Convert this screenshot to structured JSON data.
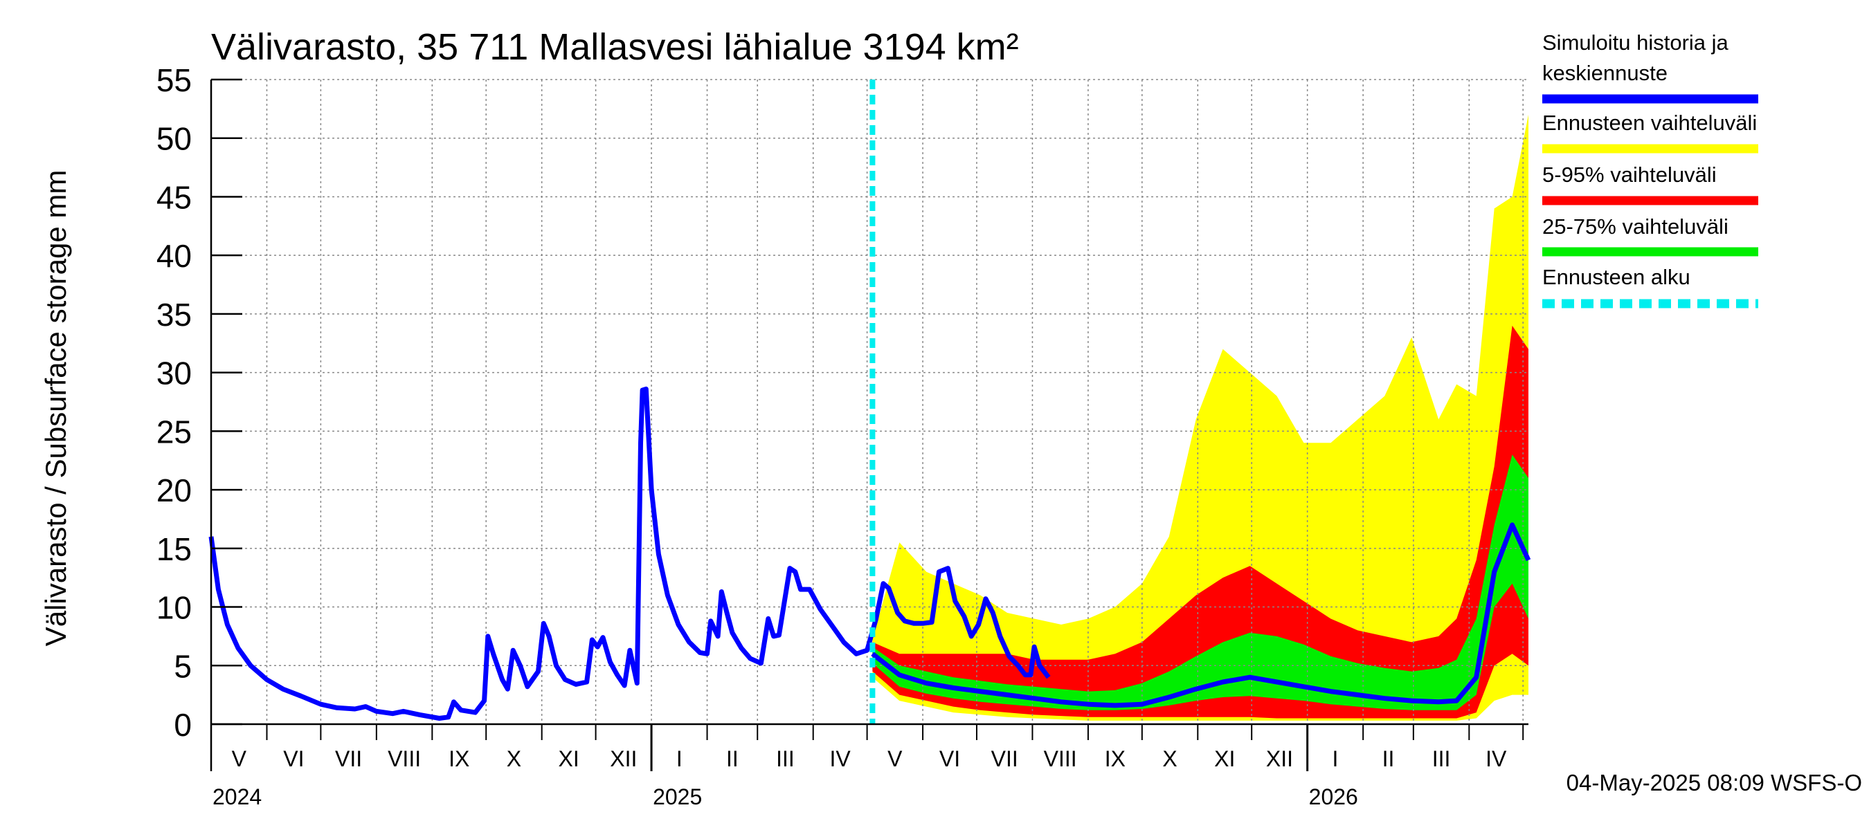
{
  "chart_data": {
    "type": "area",
    "title": "Välivarasto, 35 711 Mallasvesi lähialue 3194 km²",
    "ylabel": "Välivarasto / Subsurface storage  mm",
    "xlabel": "",
    "ylim": [
      0,
      55
    ],
    "yticks": [
      0,
      5,
      10,
      15,
      20,
      25,
      30,
      35,
      40,
      45,
      50,
      55
    ],
    "xlim": [
      "2024-05-01",
      "2026-05-04"
    ],
    "month_labels": [
      "V",
      "VI",
      "VII",
      "VIII",
      "IX",
      "X",
      "XI",
      "XII",
      "I",
      "II",
      "III",
      "IV",
      "V",
      "VI",
      "VII",
      "VIII",
      "IX",
      "X",
      "XI",
      "XII",
      "I",
      "II",
      "III",
      "IV"
    ],
    "year_labels": [
      {
        "label": "2024",
        "date": "2024-05-01"
      },
      {
        "label": "2025",
        "date": "2025-01-01"
      },
      {
        "label": "2026",
        "date": "2026-01-01"
      }
    ],
    "forecast_start": "2025-05-04",
    "grid": true,
    "legend_position": "right",
    "footer": "04-May-2025 08:09 WSFS-O",
    "colors": {
      "history": "#0000ff",
      "range_full": "#ffff00",
      "range_5_95": "#ff0000",
      "range_25_75": "#00ee00",
      "forecast_start": "#00eeee",
      "grid": "#888888"
    },
    "legend": [
      {
        "label": "Simuloitu historia ja",
        "label2": "keskiennuste",
        "color": "#0000ff",
        "style": "solid"
      },
      {
        "label": "Ennusteen vaihteluväli",
        "color": "#ffff00",
        "style": "solid"
      },
      {
        "label": "5-95% vaihteluväli",
        "color": "#ff0000",
        "style": "solid"
      },
      {
        "label": "25-75% vaihteluväli",
        "color": "#00ee00",
        "style": "solid"
      },
      {
        "label": "Ennusteen alku",
        "color": "#00eeee",
        "style": "dashed"
      }
    ],
    "history": [
      [
        "2024-05-01",
        16.0
      ],
      [
        "2024-05-05",
        11.5
      ],
      [
        "2024-05-10",
        8.5
      ],
      [
        "2024-05-16",
        6.5
      ],
      [
        "2024-05-23",
        5.0
      ],
      [
        "2024-06-01",
        3.8
      ],
      [
        "2024-06-10",
        3.0
      ],
      [
        "2024-06-20",
        2.4
      ],
      [
        "2024-07-01",
        1.7
      ],
      [
        "2024-07-10",
        1.4
      ],
      [
        "2024-07-20",
        1.3
      ],
      [
        "2024-07-26",
        1.5
      ],
      [
        "2024-08-01",
        1.1
      ],
      [
        "2024-08-10",
        0.9
      ],
      [
        "2024-08-16",
        1.1
      ],
      [
        "2024-08-25",
        0.8
      ],
      [
        "2024-09-05",
        0.5
      ],
      [
        "2024-09-10",
        0.6
      ],
      [
        "2024-09-13",
        1.9
      ],
      [
        "2024-09-17",
        1.2
      ],
      [
        "2024-09-25",
        1.0
      ],
      [
        "2024-09-30",
        2.0
      ],
      [
        "2024-10-02",
        7.5
      ],
      [
        "2024-10-05",
        6.0
      ],
      [
        "2024-10-10",
        3.8
      ],
      [
        "2024-10-13",
        3.0
      ],
      [
        "2024-10-16",
        6.3
      ],
      [
        "2024-10-20",
        5.0
      ],
      [
        "2024-10-24",
        3.2
      ],
      [
        "2024-10-30",
        4.5
      ],
      [
        "2024-11-02",
        8.6
      ],
      [
        "2024-11-05",
        7.5
      ],
      [
        "2024-11-09",
        5.0
      ],
      [
        "2024-11-14",
        3.8
      ],
      [
        "2024-11-20",
        3.4
      ],
      [
        "2024-11-26",
        3.6
      ],
      [
        "2024-11-29",
        7.2
      ],
      [
        "2024-12-02",
        6.6
      ],
      [
        "2024-12-05",
        7.4
      ],
      [
        "2024-12-09",
        5.3
      ],
      [
        "2024-12-13",
        4.2
      ],
      [
        "2024-12-17",
        3.3
      ],
      [
        "2024-12-20",
        6.3
      ],
      [
        "2024-12-24",
        3.5
      ],
      [
        "2024-12-26",
        24.0
      ],
      [
        "2024-12-27",
        28.5
      ],
      [
        "2024-12-29",
        28.6
      ],
      [
        "2025-01-01",
        20.0
      ],
      [
        "2025-01-05",
        14.5
      ],
      [
        "2025-01-10",
        11.0
      ],
      [
        "2025-01-16",
        8.5
      ],
      [
        "2025-01-22",
        7.0
      ],
      [
        "2025-01-28",
        6.1
      ],
      [
        "2025-02-01",
        6.0
      ],
      [
        "2025-02-03",
        8.8
      ],
      [
        "2025-02-07",
        7.5
      ],
      [
        "2025-02-09",
        11.3
      ],
      [
        "2025-02-12",
        9.5
      ],
      [
        "2025-02-15",
        7.8
      ],
      [
        "2025-02-20",
        6.5
      ],
      [
        "2025-02-25",
        5.6
      ],
      [
        "2025-03-03",
        5.2
      ],
      [
        "2025-03-07",
        9.0
      ],
      [
        "2025-03-10",
        7.5
      ],
      [
        "2025-03-13",
        7.6
      ],
      [
        "2025-03-19",
        13.3
      ],
      [
        "2025-03-22",
        13.0
      ],
      [
        "2025-03-25",
        11.5
      ],
      [
        "2025-03-30",
        11.5
      ],
      [
        "2025-04-05",
        9.8
      ],
      [
        "2025-04-12",
        8.3
      ],
      [
        "2025-04-18",
        7.0
      ],
      [
        "2025-04-25",
        6.0
      ],
      [
        "2025-05-01",
        6.3
      ],
      [
        "2025-05-06",
        9.0
      ],
      [
        "2025-05-10",
        12.0
      ],
      [
        "2025-05-13",
        11.6
      ],
      [
        "2025-05-18",
        9.5
      ],
      [
        "2025-05-22",
        8.8
      ],
      [
        "2025-05-27",
        8.6
      ],
      [
        "2025-06-01",
        8.6
      ],
      [
        "2025-06-06",
        8.7
      ],
      [
        "2025-06-10",
        13.0
      ],
      [
        "2025-06-15",
        13.3
      ],
      [
        "2025-06-19",
        10.5
      ],
      [
        "2025-06-24",
        9.2
      ],
      [
        "2025-06-28",
        7.5
      ],
      [
        "2025-07-02",
        8.5
      ],
      [
        "2025-07-06",
        10.7
      ],
      [
        "2025-07-10",
        9.5
      ],
      [
        "2025-07-14",
        7.5
      ],
      [
        "2025-07-19",
        5.8
      ],
      [
        "2025-07-24",
        5.0
      ],
      [
        "2025-07-28",
        4.2
      ],
      [
        "2025-07-31",
        4.2
      ],
      [
        "2025-08-02",
        6.6
      ],
      [
        "2025-08-05",
        5.0
      ],
      [
        "2025-08-10",
        4.0
      ]
    ],
    "forecast_x": [
      "2025-05-04",
      "2025-05-19",
      "2025-06-03",
      "2025-06-18",
      "2025-07-03",
      "2025-07-18",
      "2025-08-02",
      "2025-08-17",
      "2025-09-01",
      "2025-09-16",
      "2025-10-01",
      "2025-10-16",
      "2025-10-31",
      "2025-11-15",
      "2025-11-30",
      "2025-12-15",
      "2025-12-30",
      "2026-01-14",
      "2026-01-29",
      "2026-02-13",
      "2026-02-28",
      "2026-03-15",
      "2026-03-25",
      "2026-04-05",
      "2026-04-15",
      "2026-04-25",
      "2026-05-04"
    ],
    "forecast_min": [
      4.0,
      2.0,
      1.5,
      1.0,
      0.8,
      0.6,
      0.5,
      0.4,
      0.3,
      0.3,
      0.3,
      0.3,
      0.3,
      0.3,
      0.3,
      0.3,
      0.3,
      0.3,
      0.3,
      0.3,
      0.3,
      0.3,
      0.3,
      0.5,
      2.0,
      2.5,
      2.5
    ],
    "forecast_p5": [
      4.5,
      2.5,
      2.0,
      1.5,
      1.2,
      1.0,
      0.8,
      0.7,
      0.6,
      0.6,
      0.6,
      0.6,
      0.6,
      0.6,
      0.6,
      0.5,
      0.5,
      0.5,
      0.5,
      0.5,
      0.5,
      0.5,
      0.5,
      1.0,
      5.0,
      6.0,
      5.0
    ],
    "forecast_p25": [
      5.2,
      3.2,
      2.6,
      2.2,
      1.9,
      1.7,
      1.5,
      1.3,
      1.2,
      1.2,
      1.3,
      1.6,
      2.0,
      2.3,
      2.4,
      2.2,
      2.0,
      1.7,
      1.5,
      1.3,
      1.2,
      1.2,
      1.2,
      2.5,
      10.0,
      12.0,
      9.0
    ],
    "forecast_median": [
      6.0,
      4.2,
      3.5,
      3.1,
      2.8,
      2.5,
      2.2,
      1.9,
      1.7,
      1.6,
      1.7,
      2.3,
      3.0,
      3.6,
      4.0,
      3.6,
      3.2,
      2.8,
      2.5,
      2.2,
      2.0,
      1.9,
      2.0,
      4.0,
      13.0,
      17.0,
      14.0
    ],
    "forecast_p75": [
      6.6,
      5.0,
      4.5,
      4.0,
      3.7,
      3.4,
      3.2,
      3.0,
      2.8,
      2.9,
      3.5,
      4.5,
      5.8,
      7.0,
      7.8,
      7.5,
      6.8,
      5.8,
      5.2,
      4.8,
      4.5,
      4.8,
      5.5,
      9.0,
      17.0,
      23.0,
      21.0
    ],
    "forecast_p95": [
      7.0,
      6.0,
      6.0,
      6.0,
      6.0,
      6.0,
      5.5,
      5.5,
      5.5,
      6.0,
      7.0,
      9.0,
      11.0,
      12.5,
      13.5,
      12.0,
      10.5,
      9.0,
      8.0,
      7.5,
      7.0,
      7.5,
      9.0,
      14.0,
      22.0,
      34.0,
      32.0
    ],
    "forecast_max": [
      7.2,
      15.5,
      13.0,
      12.0,
      11.0,
      9.5,
      9.0,
      8.5,
      9.0,
      10.0,
      12.0,
      16.0,
      26.0,
      32.0,
      30.0,
      28.0,
      24.0,
      24.0,
      26.0,
      28.0,
      33.0,
      26.0,
      29.0,
      28.0,
      44.0,
      45.0,
      52.0
    ]
  }
}
